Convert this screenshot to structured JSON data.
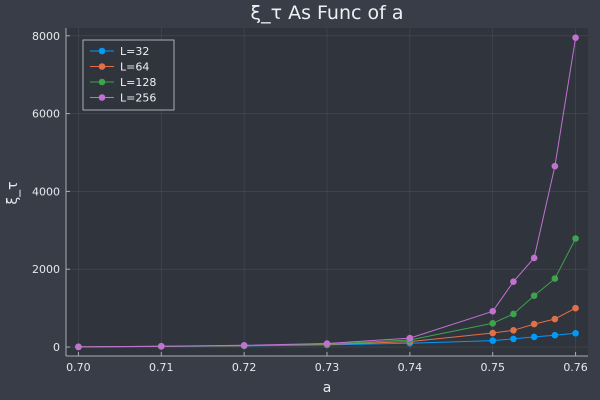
{
  "chart_data": {
    "type": "line",
    "title": "ξ_τ As Func of a",
    "xlabel": "a",
    "ylabel": "ξ_τ",
    "xlim": [
      0.6985,
      0.7615
    ],
    "ylim": [
      -230,
      8200
    ],
    "xticks": [
      0.7,
      0.71,
      0.72,
      0.73,
      0.74,
      0.75,
      0.76
    ],
    "xtick_labels": [
      "0.70",
      "0.71",
      "0.72",
      "0.73",
      "0.74",
      "0.75",
      "0.76"
    ],
    "yticks": [
      0,
      2000,
      4000,
      6000,
      8000
    ],
    "ytick_labels": [
      "0",
      "2000",
      "4000",
      "6000",
      "8000"
    ],
    "grid": true,
    "legend_position": "top-left",
    "markers": true,
    "x": [
      0.7,
      0.71,
      0.72,
      0.73,
      0.74,
      0.75,
      0.7525,
      0.755,
      0.7575,
      0.76
    ],
    "series": [
      {
        "name": "L=32",
        "color": "#009af9",
        "values": [
          5,
          15,
          30,
          55,
          100,
          165,
          210,
          260,
          305,
          355
        ]
      },
      {
        "name": "L=64",
        "color": "#e26f46",
        "values": [
          5,
          18,
          35,
          65,
          140,
          360,
          430,
          590,
          720,
          1000
        ]
      },
      {
        "name": "L=128",
        "color": "#3da44d",
        "values": [
          5,
          20,
          40,
          75,
          180,
          610,
          850,
          1320,
          1760,
          2790
        ]
      },
      {
        "name": "L=256",
        "color": "#c271d2",
        "values": [
          5,
          22,
          45,
          90,
          230,
          920,
          1680,
          2290,
          4650,
          7950
        ]
      }
    ],
    "colors": {
      "background": "#383d47",
      "plot_background": "#30343c",
      "grid": "#464b55",
      "axis": "#a8adb6",
      "text": "#e6e8ec"
    }
  }
}
